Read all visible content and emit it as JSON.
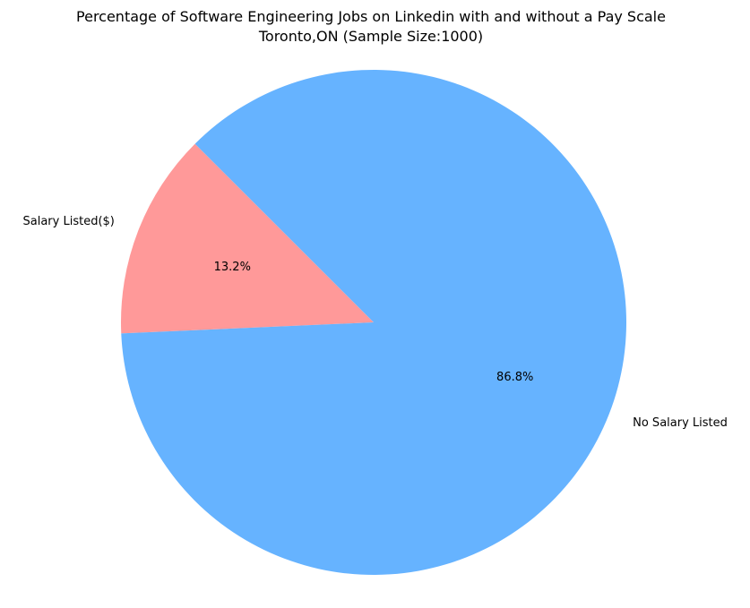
{
  "chart_data": {
    "type": "pie",
    "title": "Percentage of Software Engineering Jobs on Linkedin with and without a Pay Scale",
    "subtitle": "Toronto,ON (Sample Size:1000)",
    "categories": [
      "Salary Listed($)",
      "No Salary Listed"
    ],
    "values": [
      13.2,
      86.8
    ],
    "percent_labels": [
      "13.2%",
      "86.8%"
    ],
    "colors": [
      "#ff9999",
      "#66b3ff"
    ],
    "start_angle_deg": 135,
    "direction": "counterclockwise",
    "legend": "none"
  }
}
